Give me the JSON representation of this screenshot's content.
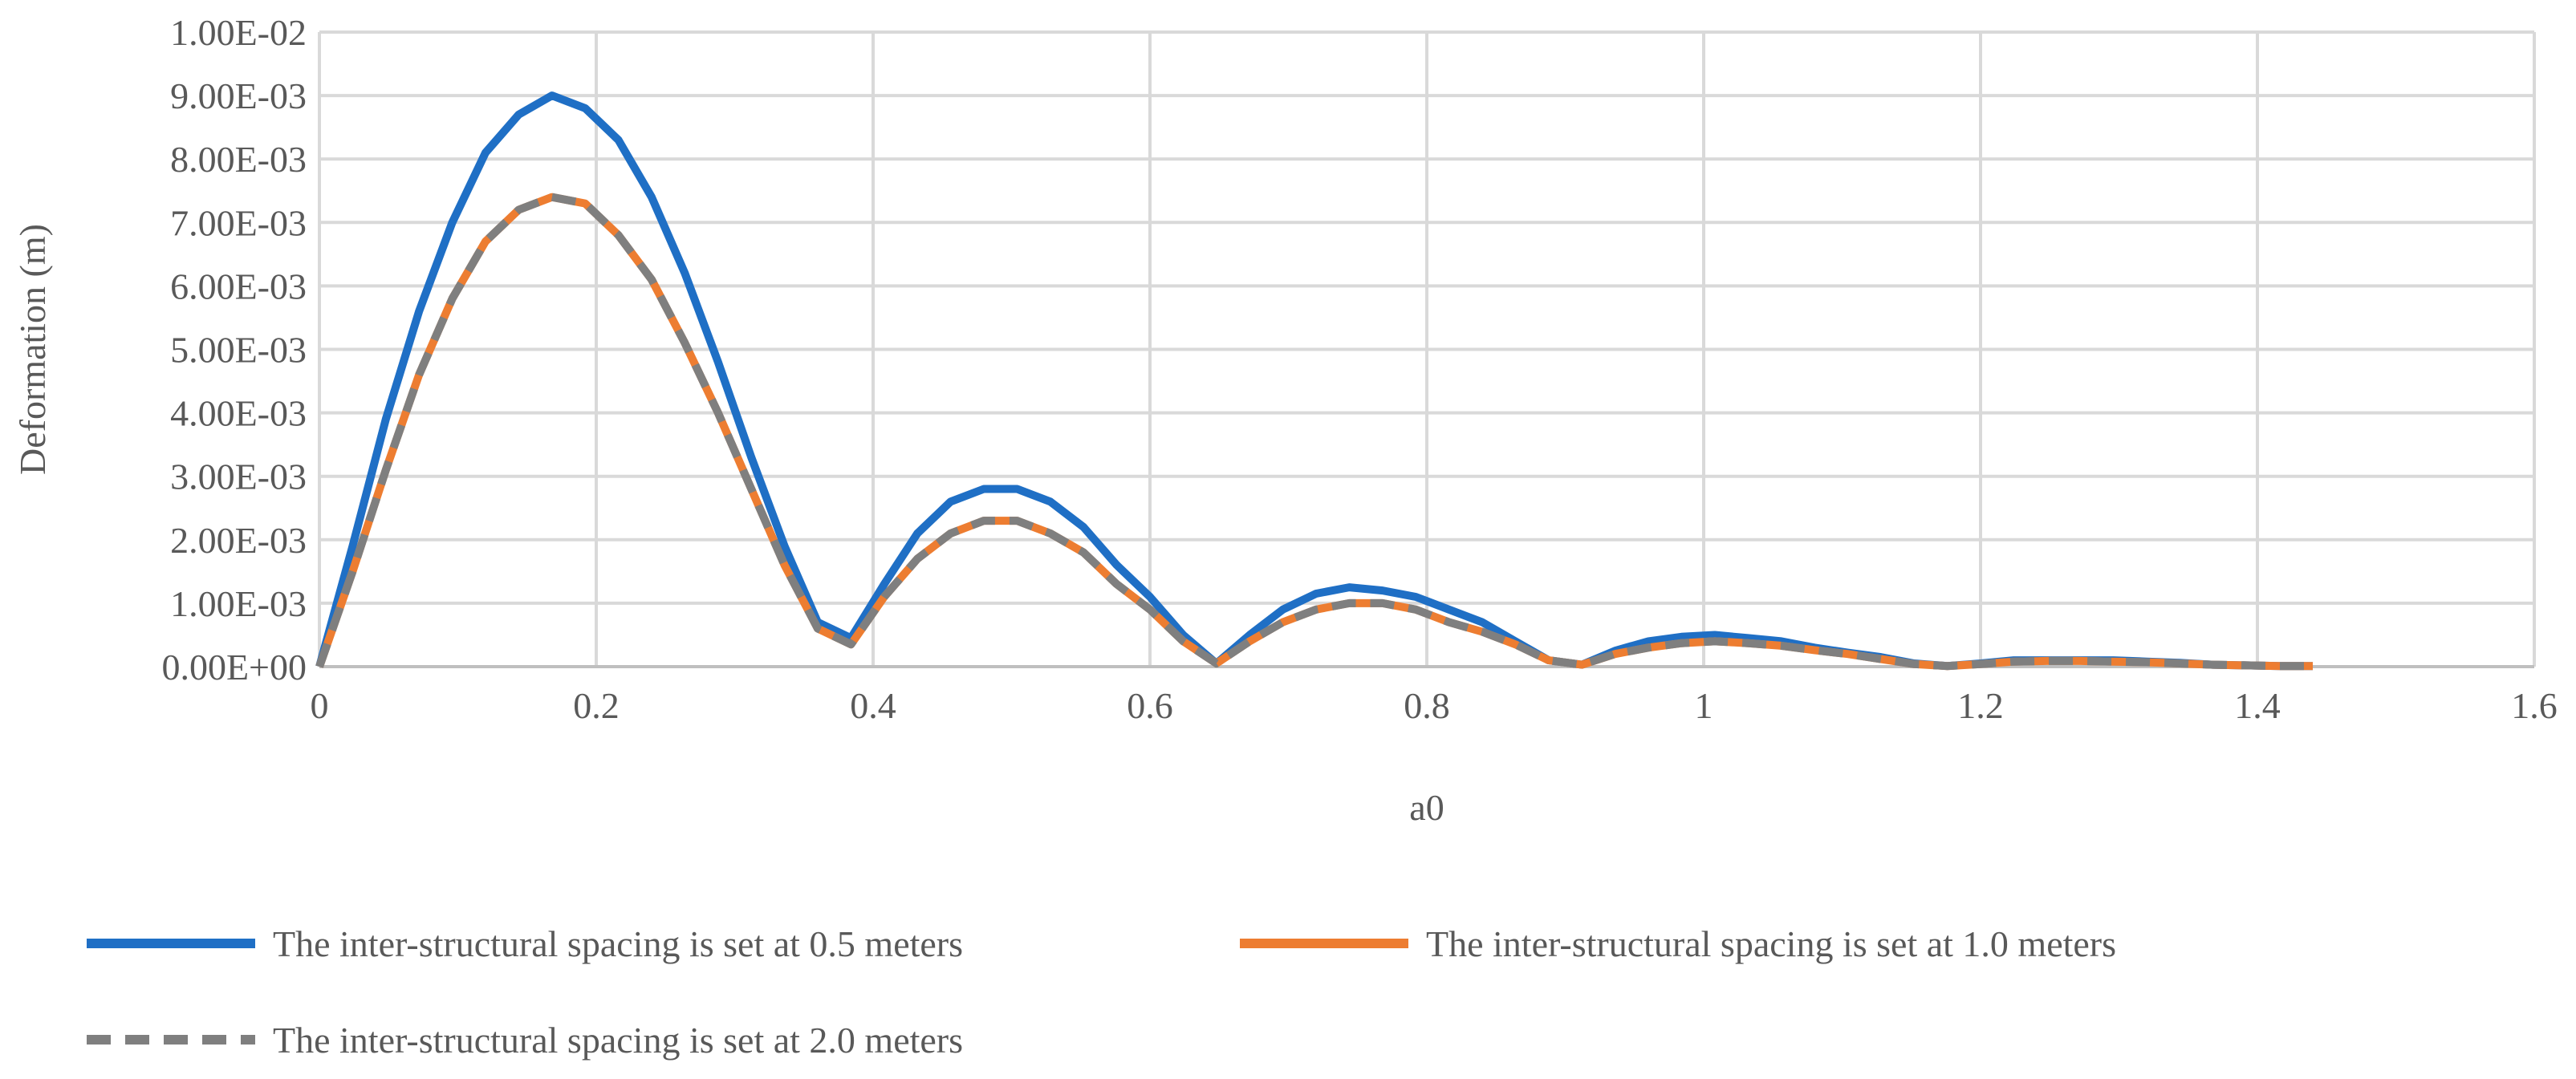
{
  "chart_data": {
    "type": "line",
    "title": "",
    "xlabel": "a0",
    "ylabel": "Deformation (m)",
    "xlim": [
      0,
      1.6
    ],
    "ylim": [
      0,
      0.01
    ],
    "x_ticks": [
      "0",
      "0.2",
      "0.4",
      "0.6",
      "0.8",
      "1",
      "1.2",
      "1.4",
      "1.6"
    ],
    "y_ticks": [
      "0.00E+00",
      "1.00E-03",
      "2.00E-03",
      "3.00E-03",
      "4.00E-03",
      "5.00E-03",
      "6.00E-03",
      "7.00E-03",
      "8.00E-03",
      "9.00E-03",
      "1.00E-02"
    ],
    "grid": true,
    "legend_position": "bottom",
    "series": [
      {
        "name": "The inter-structural spacing is set at 0.5 meters",
        "color": "#1f6fc5",
        "dash": "solid",
        "x": [
          0,
          0.024,
          0.048,
          0.072,
          0.096,
          0.12,
          0.144,
          0.168,
          0.192,
          0.216,
          0.24,
          0.264,
          0.288,
          0.312,
          0.336,
          0.36,
          0.384,
          0.408,
          0.432,
          0.456,
          0.48,
          0.504,
          0.528,
          0.552,
          0.576,
          0.6,
          0.624,
          0.648,
          0.672,
          0.696,
          0.72,
          0.744,
          0.768,
          0.792,
          0.816,
          0.84,
          0.864,
          0.888,
          0.912,
          0.936,
          0.96,
          0.984,
          1.008,
          1.032,
          1.056,
          1.08,
          1.104,
          1.128,
          1.152,
          1.176,
          1.2,
          1.224,
          1.248,
          1.272,
          1.296,
          1.32,
          1.344,
          1.368,
          1.392,
          1.416,
          1.44
        ],
        "y": [
          0,
          0.0019,
          0.0039,
          0.0056,
          0.007,
          0.0081,
          0.0087,
          0.009,
          0.0088,
          0.0083,
          0.0074,
          0.0062,
          0.0048,
          0.0033,
          0.0019,
          0.0007,
          0.00045,
          0.0013,
          0.0021,
          0.0026,
          0.0028,
          0.0028,
          0.0026,
          0.0022,
          0.0016,
          0.0011,
          0.0005,
          5e-05,
          0.0005,
          0.0009,
          0.00115,
          0.00125,
          0.0012,
          0.0011,
          0.0009,
          0.0007,
          0.0004,
          0.0001,
          3e-05,
          0.00025,
          0.0004,
          0.00047,
          0.0005,
          0.00045,
          0.0004,
          0.0003,
          0.00022,
          0.00015,
          5e-05,
          1e-05,
          5e-05,
          0.0001,
          0.0001,
          0.0001,
          0.0001,
          8e-05,
          6e-05,
          3e-05,
          2e-05,
          1e-05,
          1e-05
        ]
      },
      {
        "name": "The inter-structural spacing is set at 1.0 meters",
        "color": "#ed7d31",
        "dash": "solid",
        "x": [
          0,
          0.024,
          0.048,
          0.072,
          0.096,
          0.12,
          0.144,
          0.168,
          0.192,
          0.216,
          0.24,
          0.264,
          0.288,
          0.312,
          0.336,
          0.36,
          0.384,
          0.408,
          0.432,
          0.456,
          0.48,
          0.504,
          0.528,
          0.552,
          0.576,
          0.6,
          0.624,
          0.648,
          0.672,
          0.696,
          0.72,
          0.744,
          0.768,
          0.792,
          0.816,
          0.84,
          0.864,
          0.888,
          0.912,
          0.936,
          0.96,
          0.984,
          1.008,
          1.032,
          1.056,
          1.08,
          1.104,
          1.128,
          1.152,
          1.176,
          1.2,
          1.224,
          1.248,
          1.272,
          1.296,
          1.32,
          1.344,
          1.368,
          1.392,
          1.416,
          1.44
        ],
        "y": [
          0,
          0.0015,
          0.0031,
          0.0046,
          0.0058,
          0.0067,
          0.0072,
          0.0074,
          0.0073,
          0.0068,
          0.0061,
          0.0051,
          0.004,
          0.0028,
          0.0016,
          0.0006,
          0.00035,
          0.0011,
          0.0017,
          0.0021,
          0.0023,
          0.0023,
          0.0021,
          0.0018,
          0.0013,
          0.0009,
          0.0004,
          5e-05,
          0.0004,
          0.0007,
          0.0009,
          0.001,
          0.001,
          0.0009,
          0.0007,
          0.00055,
          0.00035,
          0.0001,
          3e-05,
          0.0002,
          0.0003,
          0.00037,
          0.0004,
          0.00037,
          0.00033,
          0.00026,
          0.0002,
          0.00012,
          4e-05,
          1e-05,
          4e-05,
          8e-05,
          9e-05,
          9e-05,
          8e-05,
          7e-05,
          5e-05,
          3e-05,
          2e-05,
          1e-05,
          1e-05
        ]
      },
      {
        "name": "The inter-structural spacing is set at 2.0 meters",
        "color": "#7f7f7f",
        "dash": "dashed",
        "x": [
          0,
          0.024,
          0.048,
          0.072,
          0.096,
          0.12,
          0.144,
          0.168,
          0.192,
          0.216,
          0.24,
          0.264,
          0.288,
          0.312,
          0.336,
          0.36,
          0.384,
          0.408,
          0.432,
          0.456,
          0.48,
          0.504,
          0.528,
          0.552,
          0.576,
          0.6,
          0.624,
          0.648,
          0.672,
          0.696,
          0.72,
          0.744,
          0.768,
          0.792,
          0.816,
          0.84,
          0.864,
          0.888,
          0.912,
          0.936,
          0.96,
          0.984,
          1.008,
          1.032,
          1.056,
          1.08,
          1.104,
          1.128,
          1.152,
          1.176,
          1.2,
          1.224,
          1.248,
          1.272,
          1.296,
          1.32,
          1.344,
          1.368,
          1.392,
          1.416,
          1.44
        ],
        "y": [
          0,
          0.0015,
          0.0031,
          0.0046,
          0.0058,
          0.0067,
          0.0072,
          0.0074,
          0.0073,
          0.0068,
          0.0061,
          0.0051,
          0.004,
          0.0028,
          0.0016,
          0.0006,
          0.00035,
          0.0011,
          0.0017,
          0.0021,
          0.0023,
          0.0023,
          0.0021,
          0.0018,
          0.0013,
          0.0009,
          0.0004,
          5e-05,
          0.0004,
          0.0007,
          0.0009,
          0.001,
          0.001,
          0.0009,
          0.0007,
          0.00055,
          0.00035,
          0.0001,
          3e-05,
          0.0002,
          0.0003,
          0.00037,
          0.0004,
          0.00037,
          0.00033,
          0.00026,
          0.0002,
          0.00012,
          4e-05,
          1e-05,
          4e-05,
          8e-05,
          9e-05,
          9e-05,
          8e-05,
          7e-05,
          5e-05,
          3e-05,
          2e-05,
          1e-05,
          1e-05
        ]
      }
    ]
  }
}
